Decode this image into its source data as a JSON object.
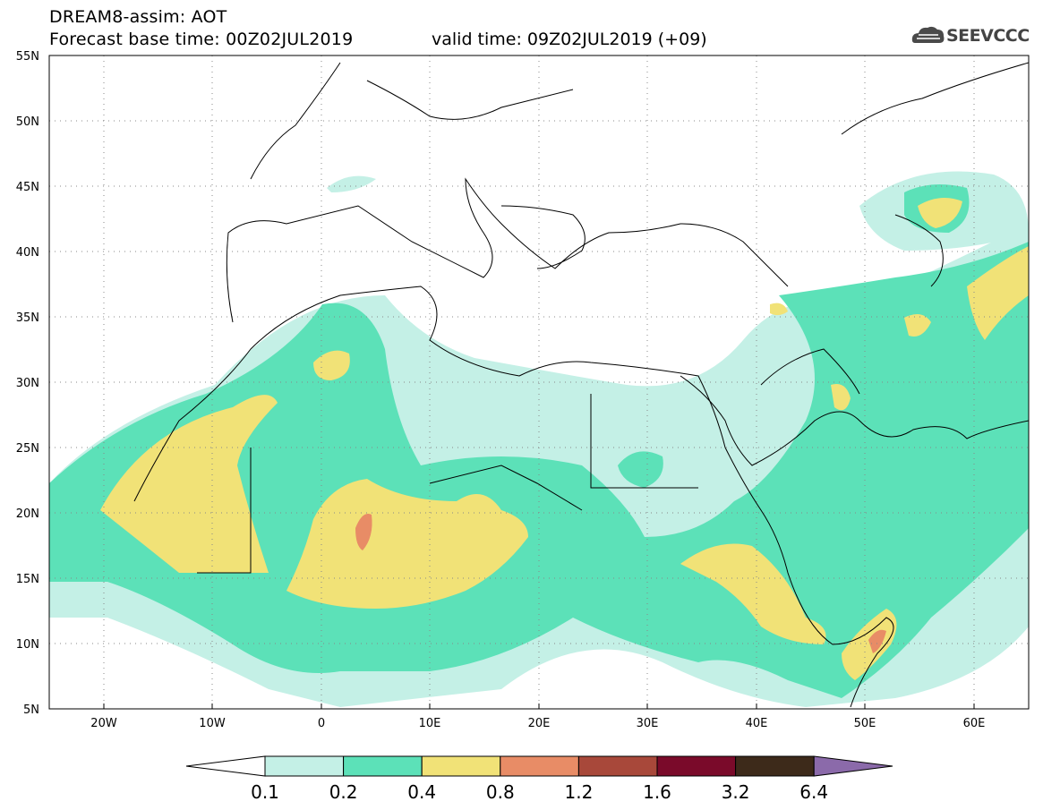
{
  "header": {
    "model_title": "DREAM8-assim: AOT",
    "forecast_base": "Forecast base time: 00Z02JUL2019",
    "valid_time": "valid time: 09Z02JUL2019 (+09)",
    "logo_text": "SEEVCCC"
  },
  "axes": {
    "lon_labels": [
      "20W",
      "10W",
      "0",
      "10E",
      "20E",
      "30E",
      "40E",
      "50E",
      "60E"
    ],
    "lat_labels": [
      "55N",
      "50N",
      "45N",
      "40N",
      "35N",
      "30N",
      "25N",
      "20N",
      "15N",
      "10N",
      "5N"
    ],
    "lon_range": [
      -25,
      65
    ],
    "lat_range": [
      5,
      55
    ]
  },
  "colorbar": {
    "labels": [
      "0.1",
      "0.2",
      "0.4",
      "0.8",
      "1.2",
      "1.6",
      "3.2",
      "6.4"
    ],
    "colors": [
      "#ffffff",
      "#c4f0e6",
      "#5ce1b8",
      "#f1e277",
      "#e88c66",
      "#a8483a",
      "#7a0a2a",
      "#3d2a1a",
      "#8b6aaa"
    ]
  },
  "colors": {
    "low": "#c4f0e6",
    "mid": "#5ce1b8",
    "high": "#f1e277",
    "very_high": "#e88c66"
  }
}
